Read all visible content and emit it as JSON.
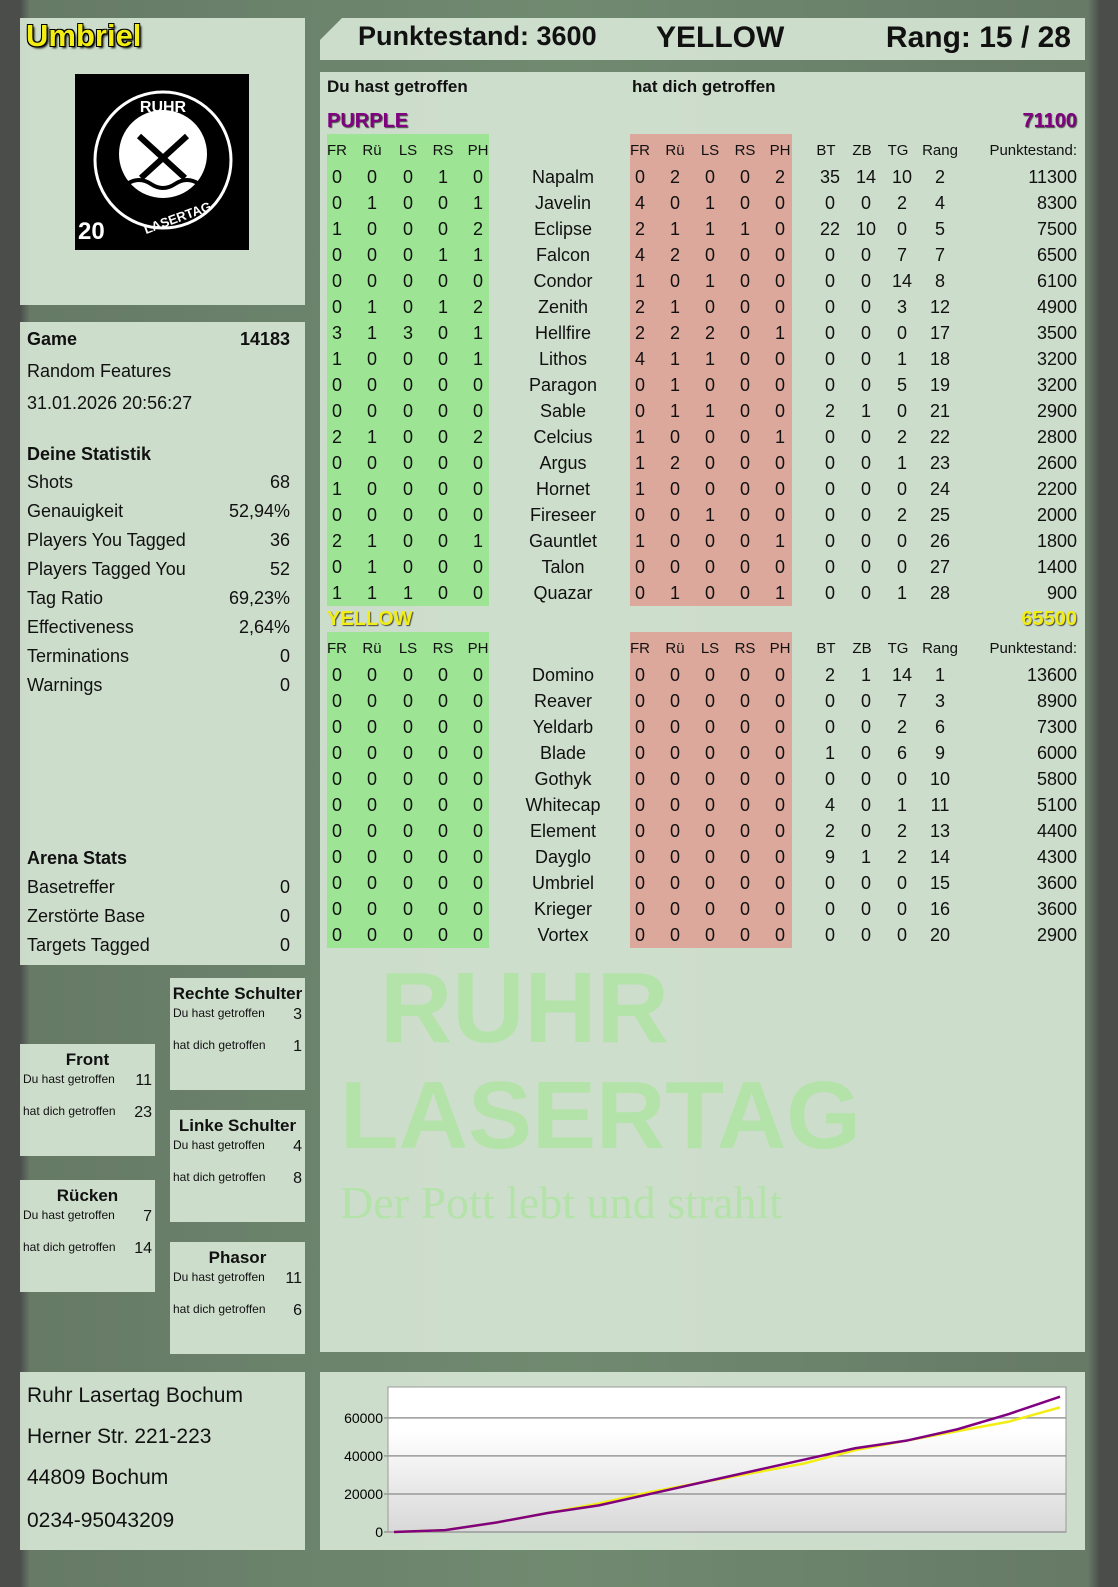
{
  "player": {
    "name": "Umbriel",
    "logo_text": "RUHR LASERTAG",
    "logo_number": "20"
  },
  "header": {
    "score_label": "Punktestand: 3600",
    "team": "YELLOW",
    "rank_label": "Rang: 15 / 28"
  },
  "main": {
    "you_hit": "Du hast getroffen",
    "hit_you": "hat dich getroffen",
    "cols_left": [
      "FR",
      "Rü",
      "LS",
      "RS",
      "PH"
    ],
    "cols_right": [
      "FR",
      "Rü",
      "LS",
      "RS",
      "PH"
    ],
    "cols_stats": [
      "BT",
      "ZB",
      "TG",
      "Rang"
    ],
    "score_col": "Punktestand:",
    "teams": [
      {
        "name": "PURPLE",
        "total": "71100",
        "color": "#800080",
        "players": [
          [
            "Napalm",
            [
              0,
              0,
              0,
              1,
              0
            ],
            [
              0,
              2,
              0,
              0,
              2
            ],
            [
              35,
              14,
              10,
              2
            ],
            11300
          ],
          [
            "Javelin",
            [
              0,
              1,
              0,
              0,
              1
            ],
            [
              4,
              0,
              1,
              0,
              0
            ],
            [
              0,
              0,
              2,
              4
            ],
            8300
          ],
          [
            "Eclipse",
            [
              1,
              0,
              0,
              0,
              2
            ],
            [
              2,
              1,
              1,
              1,
              0
            ],
            [
              22,
              10,
              0,
              5
            ],
            7500
          ],
          [
            "Falcon",
            [
              0,
              0,
              0,
              1,
              1
            ],
            [
              4,
              2,
              0,
              0,
              0
            ],
            [
              0,
              0,
              7,
              7
            ],
            6500
          ],
          [
            "Condor",
            [
              0,
              0,
              0,
              0,
              0
            ],
            [
              1,
              0,
              1,
              0,
              0
            ],
            [
              0,
              0,
              14,
              8
            ],
            6100
          ],
          [
            "Zenith",
            [
              0,
              1,
              0,
              1,
              2
            ],
            [
              2,
              1,
              0,
              0,
              0
            ],
            [
              0,
              0,
              3,
              12
            ],
            4900
          ],
          [
            "Hellfire",
            [
              3,
              1,
              3,
              0,
              1
            ],
            [
              2,
              2,
              2,
              0,
              1
            ],
            [
              0,
              0,
              0,
              17
            ],
            3500
          ],
          [
            "Lithos",
            [
              1,
              0,
              0,
              0,
              1
            ],
            [
              4,
              1,
              1,
              0,
              0
            ],
            [
              0,
              0,
              1,
              18
            ],
            3200
          ],
          [
            "Paragon",
            [
              0,
              0,
              0,
              0,
              0
            ],
            [
              0,
              1,
              0,
              0,
              0
            ],
            [
              0,
              0,
              5,
              19
            ],
            3200
          ],
          [
            "Sable",
            [
              0,
              0,
              0,
              0,
              0
            ],
            [
              0,
              1,
              1,
              0,
              0
            ],
            [
              2,
              1,
              0,
              21
            ],
            2900
          ],
          [
            "Celcius",
            [
              2,
              1,
              0,
              0,
              2
            ],
            [
              1,
              0,
              0,
              0,
              1
            ],
            [
              0,
              0,
              2,
              22
            ],
            2800
          ],
          [
            "Argus",
            [
              0,
              0,
              0,
              0,
              0
            ],
            [
              1,
              2,
              0,
              0,
              0
            ],
            [
              0,
              0,
              1,
              23
            ],
            2600
          ],
          [
            "Hornet",
            [
              1,
              0,
              0,
              0,
              0
            ],
            [
              1,
              0,
              0,
              0,
              0
            ],
            [
              0,
              0,
              0,
              24
            ],
            2200
          ],
          [
            "Fireseer",
            [
              0,
              0,
              0,
              0,
              0
            ],
            [
              0,
              0,
              1,
              0,
              0
            ],
            [
              0,
              0,
              2,
              25
            ],
            2000
          ],
          [
            "Gauntlet",
            [
              2,
              1,
              0,
              0,
              1
            ],
            [
              1,
              0,
              0,
              0,
              1
            ],
            [
              0,
              0,
              0,
              26
            ],
            1800
          ],
          [
            "Talon",
            [
              0,
              1,
              0,
              0,
              0
            ],
            [
              0,
              0,
              0,
              0,
              0
            ],
            [
              0,
              0,
              0,
              27
            ],
            1400
          ],
          [
            "Quazar",
            [
              1,
              1,
              1,
              0,
              0
            ],
            [
              0,
              1,
              0,
              0,
              1
            ],
            [
              0,
              0,
              1,
              28
            ],
            900
          ]
        ]
      },
      {
        "name": "YELLOW",
        "total": "65500",
        "color": "#f2ee14",
        "players": [
          [
            "Domino",
            [
              0,
              0,
              0,
              0,
              0
            ],
            [
              0,
              0,
              0,
              0,
              0
            ],
            [
              2,
              1,
              14,
              1
            ],
            13600
          ],
          [
            "Reaver",
            [
              0,
              0,
              0,
              0,
              0
            ],
            [
              0,
              0,
              0,
              0,
              0
            ],
            [
              0,
              0,
              7,
              3
            ],
            8900
          ],
          [
            "Yeldarb",
            [
              0,
              0,
              0,
              0,
              0
            ],
            [
              0,
              0,
              0,
              0,
              0
            ],
            [
              0,
              0,
              2,
              6
            ],
            7300
          ],
          [
            "Blade",
            [
              0,
              0,
              0,
              0,
              0
            ],
            [
              0,
              0,
              0,
              0,
              0
            ],
            [
              1,
              0,
              6,
              9
            ],
            6000
          ],
          [
            "Gothyk",
            [
              0,
              0,
              0,
              0,
              0
            ],
            [
              0,
              0,
              0,
              0,
              0
            ],
            [
              0,
              0,
              0,
              10
            ],
            5800
          ],
          [
            "Whitecap",
            [
              0,
              0,
              0,
              0,
              0
            ],
            [
              0,
              0,
              0,
              0,
              0
            ],
            [
              4,
              0,
              1,
              11
            ],
            5100
          ],
          [
            "Element",
            [
              0,
              0,
              0,
              0,
              0
            ],
            [
              0,
              0,
              0,
              0,
              0
            ],
            [
              2,
              0,
              2,
              13
            ],
            4400
          ],
          [
            "Dayglo",
            [
              0,
              0,
              0,
              0,
              0
            ],
            [
              0,
              0,
              0,
              0,
              0
            ],
            [
              9,
              1,
              2,
              14
            ],
            4300
          ],
          [
            "Umbriel",
            [
              0,
              0,
              0,
              0,
              0
            ],
            [
              0,
              0,
              0,
              0,
              0
            ],
            [
              0,
              0,
              0,
              15
            ],
            3600
          ],
          [
            "Krieger",
            [
              0,
              0,
              0,
              0,
              0
            ],
            [
              0,
              0,
              0,
              0,
              0
            ],
            [
              0,
              0,
              0,
              16
            ],
            3600
          ],
          [
            "Vortex",
            [
              0,
              0,
              0,
              0,
              0
            ],
            [
              0,
              0,
              0,
              0,
              0
            ],
            [
              0,
              0,
              0,
              20
            ],
            2900
          ]
        ]
      }
    ]
  },
  "game": {
    "label": "Game",
    "id": "14183",
    "mode": "Random Features",
    "datetime": "31.01.2026 20:56:27"
  },
  "stats": {
    "title": "Deine Statistik",
    "items": [
      [
        "Shots",
        "68"
      ],
      [
        "Genauigkeit",
        "52,94%"
      ],
      [
        "Players You Tagged",
        "36"
      ],
      [
        "Players Tagged You",
        "52"
      ],
      [
        "Tag Ratio",
        "69,23%"
      ],
      [
        "Effectiveness",
        "2,64%"
      ],
      [
        "Terminations",
        "0"
      ],
      [
        "Warnings",
        "0"
      ]
    ]
  },
  "arena": {
    "title": "Arena Stats",
    "items": [
      [
        "Basetreffer",
        "0"
      ],
      [
        "Zerstörte Base",
        "0"
      ],
      [
        "Targets Tagged",
        "0"
      ]
    ]
  },
  "zones": {
    "you_hit": "Du hast getroffen",
    "hit_you": "hat dich getroffen",
    "items": [
      {
        "title": "Rechte Schulter",
        "you_hit": 3,
        "hit_you": 1
      },
      {
        "title": "Front",
        "you_hit": 11,
        "hit_you": 23
      },
      {
        "title": "Linke Schulter",
        "you_hit": 4,
        "hit_you": 8
      },
      {
        "title": "Rücken",
        "you_hit": 7,
        "hit_you": 14
      },
      {
        "title": "Phasor",
        "you_hit": 11,
        "hit_you": 6
      }
    ]
  },
  "address": [
    "Ruhr Lasertag Bochum",
    "Herner Str. 221-223",
    "44809 Bochum",
    "0234-95043209"
  ],
  "watermark": [
    "RUHR",
    "LASERTAG",
    "Der Pott lebt und strahlt"
  ],
  "chart_data": {
    "type": "line",
    "ylim": [
      0,
      72000
    ],
    "yticks": [
      "0",
      "20000",
      "40000",
      "60000"
    ],
    "grid": true,
    "series": [
      {
        "color": "#800080",
        "values": [
          0,
          1000,
          5000,
          10000,
          14000,
          20000,
          26000,
          32000,
          38000,
          44000,
          48000,
          54000,
          62000,
          71100
        ]
      },
      {
        "color": "#f2ee14",
        "values": [
          0,
          1000,
          5000,
          10000,
          15000,
          21000,
          26000,
          31000,
          36000,
          43000,
          48000,
          53000,
          58000,
          65500
        ]
      }
    ]
  }
}
